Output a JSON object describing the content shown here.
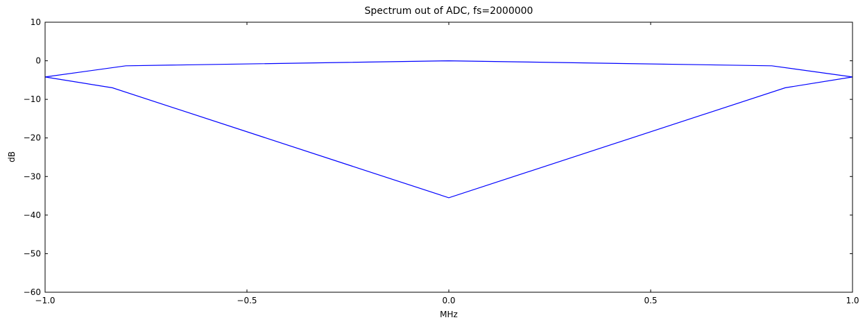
{
  "chart_data": {
    "type": "line",
    "title": "Spectrum out of ADC, fs=2000000",
    "xlabel": "MHz",
    "ylabel": "dB",
    "xlim": [
      -1.0,
      1.0
    ],
    "ylim": [
      -60,
      10
    ],
    "grid": false,
    "line_color": "#0000ff",
    "x_ticks": [
      {
        "value": -1.0,
        "label": "−1.0"
      },
      {
        "value": -0.5,
        "label": "−0.5"
      },
      {
        "value": 0.0,
        "label": "0.0"
      },
      {
        "value": 0.5,
        "label": "0.5"
      },
      {
        "value": 1.0,
        "label": "1.0"
      }
    ],
    "y_ticks": [
      {
        "value": 10,
        "label": "10"
      },
      {
        "value": 0,
        "label": "0"
      },
      {
        "value": -10,
        "label": "−10"
      },
      {
        "value": -20,
        "label": "−20"
      },
      {
        "value": -30,
        "label": "−30"
      },
      {
        "value": -40,
        "label": "−40"
      },
      {
        "value": -50,
        "label": "−50"
      },
      {
        "value": -60,
        "label": "−60"
      }
    ],
    "series": [
      {
        "x": [
          -1.0,
          -0.833,
          0.0,
          0.833,
          1.0,
          0.8,
          0.0,
          -0.8,
          -1.0
        ],
        "y": [
          -4.2,
          -7.0,
          -35.5,
          -7.0,
          -4.2,
          -1.3,
          0.0,
          -1.3,
          -4.2
        ]
      }
    ]
  }
}
